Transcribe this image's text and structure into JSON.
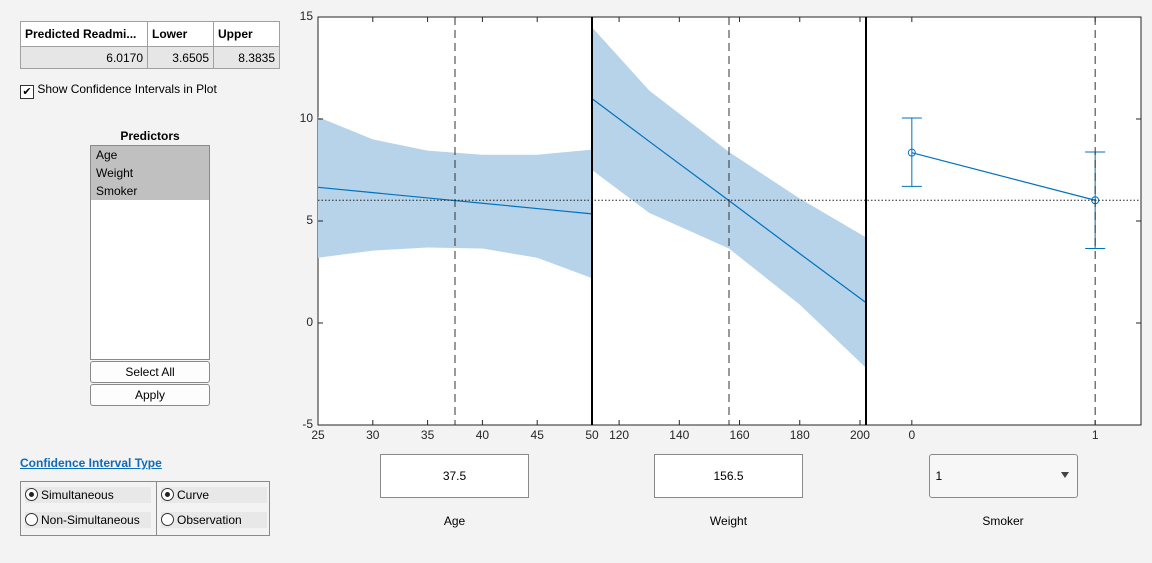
{
  "table": {
    "headers": [
      "Predicted Readmi...",
      "Lower",
      "Upper"
    ],
    "rows": [
      [
        "6.0170",
        "3.6505",
        "8.3835"
      ]
    ]
  },
  "show_ci": {
    "label": "Show Confidence Intervals in Plot",
    "checked": true
  },
  "predictors": {
    "title": "Predictors",
    "items": [
      "Age",
      "Weight",
      "Smoker"
    ],
    "buttons": [
      "Select All",
      "Apply"
    ]
  },
  "ci_type": {
    "link": "Confidence Interval Type",
    "groups": [
      {
        "options": [
          "Simultaneous",
          "Non-Simultaneous"
        ],
        "selected": 0
      },
      {
        "options": [
          "Curve",
          "Observation"
        ],
        "selected": 0
      }
    ]
  },
  "plot": {
    "ylim": [
      -5,
      15
    ],
    "yticks": [
      -5,
      0,
      5,
      10,
      15
    ],
    "reference": 6.017,
    "line_color": "#0072bd",
    "band_color": "#b6d3ea",
    "panels": [
      {
        "name": "Age",
        "xlim": [
          25,
          50
        ],
        "xticks": [
          25,
          30,
          35,
          40,
          45,
          50
        ],
        "current": 37.5,
        "x": [
          25,
          30,
          35,
          40,
          45,
          50
        ],
        "values": [
          6.65,
          6.39,
          6.13,
          5.87,
          5.61,
          5.35
        ],
        "upper": [
          10.1,
          9.0,
          8.45,
          8.25,
          8.25,
          8.5
        ],
        "lower": [
          3.2,
          3.55,
          3.7,
          3.65,
          3.2,
          2.2
        ]
      },
      {
        "name": "Weight",
        "xlim": [
          111,
          202
        ],
        "xticks": [
          120,
          140,
          160,
          180,
          200
        ],
        "current": 156.5,
        "x": [
          111,
          130,
          156.5,
          180,
          202
        ],
        "values": [
          11.0,
          8.9,
          6.0,
          3.4,
          1.0
        ],
        "upper": [
          14.5,
          11.4,
          8.38,
          6.1,
          4.2
        ],
        "lower": [
          7.5,
          5.4,
          3.65,
          0.9,
          -2.2
        ]
      },
      {
        "name": "Smoker",
        "xlim": [
          -0.25,
          1.25
        ],
        "xticks": [
          0,
          1
        ],
        "current": 1,
        "points": true,
        "x": [
          0,
          1
        ],
        "values": [
          8.35,
          6.017
        ],
        "upper": [
          10.05,
          8.38
        ],
        "lower": [
          6.7,
          3.65
        ]
      }
    ]
  }
}
